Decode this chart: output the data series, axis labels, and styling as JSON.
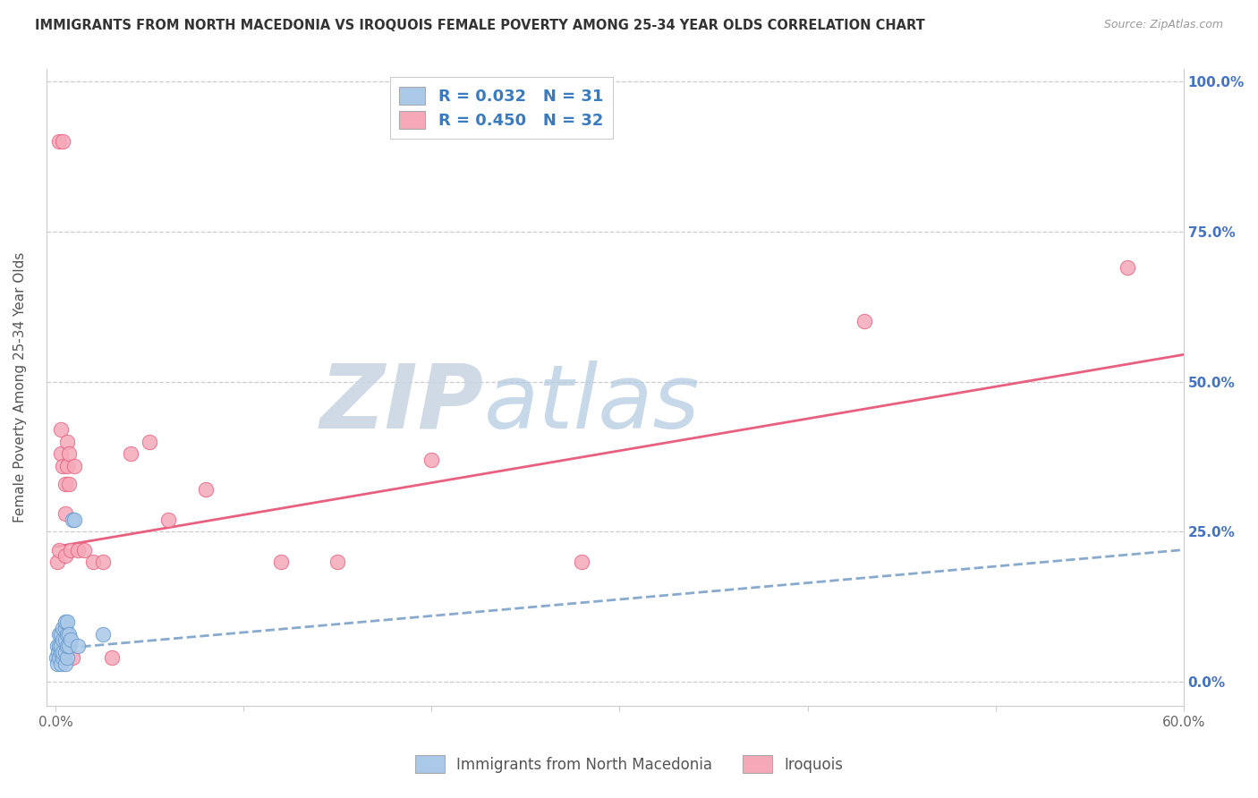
{
  "title": "IMMIGRANTS FROM NORTH MACEDONIA VS IROQUOIS FEMALE POVERTY AMONG 25-34 YEAR OLDS CORRELATION CHART",
  "source": "Source: ZipAtlas.com",
  "ylabel": "Female Poverty Among 25-34 Year Olds",
  "xlim": [
    -0.005,
    0.6
  ],
  "ylim": [
    -0.04,
    1.02
  ],
  "ytick_positions": [
    0.0,
    0.25,
    0.5,
    0.75,
    1.0
  ],
  "ytick_labels": [
    "0.0%",
    "25.0%",
    "50.0%",
    "75.0%",
    "100.0%"
  ],
  "xtick_positions": [
    0.0,
    0.1,
    0.2,
    0.3,
    0.4,
    0.5,
    0.6
  ],
  "xtick_labels": [
    "0.0%",
    "",
    "",
    "",
    "",
    "",
    "60.0%"
  ],
  "watermark_zip": "ZIP",
  "watermark_atlas": "atlas",
  "watermark_color_zip": "#c8d4e0",
  "watermark_color_atlas": "#b8cce0",
  "background_color": "#ffffff",
  "grid_color": "#cccccc",
  "title_color": "#333333",
  "axis_label_color": "#555555",
  "right_tick_color": "#4472c4",
  "blue_scatter_color": "#aac8e8",
  "blue_edge_color": "#6699cc",
  "pink_scatter_color": "#f5a8b8",
  "pink_edge_color": "#e86080",
  "blue_line_color": "#88aacc",
  "pink_line_color": "#e86080",
  "legend_box_blue": "#aac8e8",
  "legend_box_pink": "#f5a8b8",
  "legend_text_color": "#3a7bbf",
  "series1_label": "Immigrants from North Macedonia",
  "series2_label": "Iroquois",
  "scatter_blue_x": [
    0.0005,
    0.001,
    0.001,
    0.0015,
    0.002,
    0.002,
    0.002,
    0.003,
    0.003,
    0.003,
    0.003,
    0.004,
    0.004,
    0.004,
    0.004,
    0.005,
    0.005,
    0.005,
    0.005,
    0.005,
    0.006,
    0.006,
    0.006,
    0.006,
    0.007,
    0.007,
    0.008,
    0.009,
    0.01,
    0.012,
    0.025
  ],
  "scatter_blue_y": [
    0.04,
    0.03,
    0.06,
    0.05,
    0.04,
    0.06,
    0.08,
    0.03,
    0.05,
    0.06,
    0.08,
    0.04,
    0.05,
    0.07,
    0.09,
    0.03,
    0.05,
    0.07,
    0.09,
    0.1,
    0.04,
    0.06,
    0.08,
    0.1,
    0.06,
    0.08,
    0.07,
    0.27,
    0.27,
    0.06,
    0.08
  ],
  "scatter_pink_x": [
    0.001,
    0.002,
    0.002,
    0.003,
    0.003,
    0.004,
    0.004,
    0.005,
    0.005,
    0.005,
    0.006,
    0.006,
    0.007,
    0.007,
    0.008,
    0.009,
    0.01,
    0.012,
    0.015,
    0.02,
    0.025,
    0.03,
    0.04,
    0.05,
    0.06,
    0.08,
    0.12,
    0.15,
    0.2,
    0.28,
    0.43,
    0.57
  ],
  "scatter_pink_y": [
    0.2,
    0.22,
    0.9,
    0.38,
    0.42,
    0.36,
    0.9,
    0.28,
    0.33,
    0.21,
    0.36,
    0.4,
    0.33,
    0.38,
    0.22,
    0.04,
    0.36,
    0.22,
    0.22,
    0.2,
    0.2,
    0.04,
    0.38,
    0.4,
    0.27,
    0.32,
    0.2,
    0.2,
    0.37,
    0.2,
    0.6,
    0.69
  ],
  "blue_trend_x": [
    0.0,
    0.6
  ],
  "blue_trend_y": [
    0.055,
    0.22
  ],
  "pink_trend_x": [
    0.0,
    0.6
  ],
  "pink_trend_y": [
    0.225,
    0.545
  ]
}
